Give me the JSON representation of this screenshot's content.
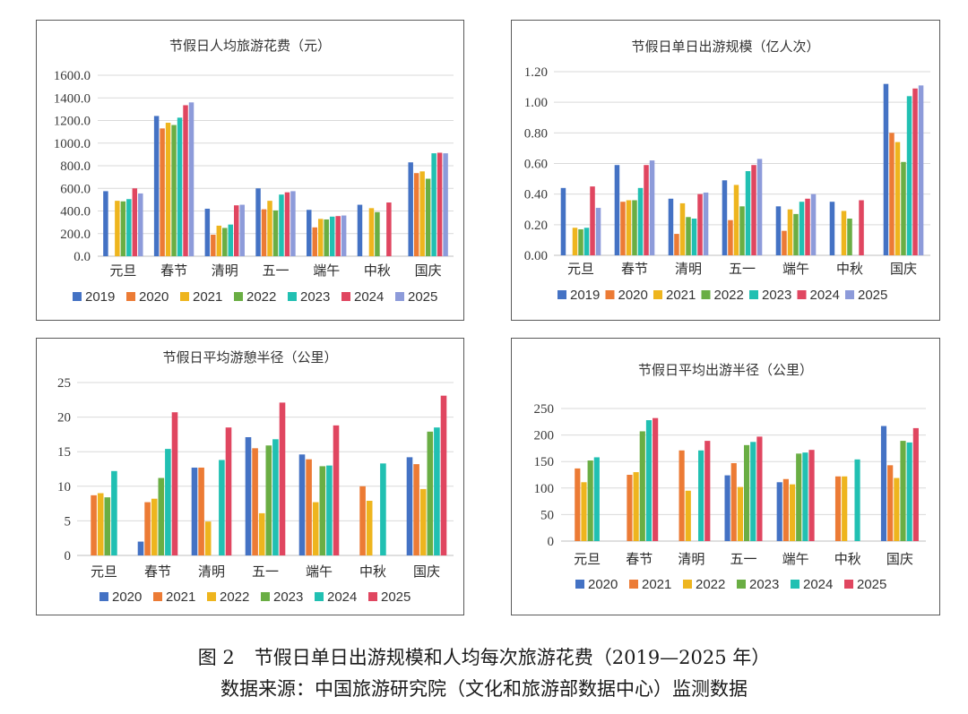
{
  "figure": {
    "label": "图 2",
    "caption": "节假日单日出游规模和人均每次旅游花费（2019—2025 年）",
    "source": "数据来源：中国旅游研究院（文化和旅游部数据中心）监测数据"
  },
  "chart_data": [
    {
      "type": "bar",
      "title": "节假日人均旅游花费（元）",
      "categories": [
        "元旦",
        "春节",
        "清明",
        "五一",
        "端午",
        "中秋",
        "国庆"
      ],
      "yticks": [
        "0.0",
        "200.0",
        "400.0",
        "600.0",
        "800.0",
        "1000.0",
        "1200.0",
        "1400.0",
        "1600.0"
      ],
      "ylim": [
        0,
        1600
      ],
      "grid": true,
      "legend": "bottom",
      "series": [
        {
          "name": "2019",
          "color": "#4472C4",
          "values": [
            575,
            1240,
            420,
            600,
            410,
            455,
            830
          ]
        },
        {
          "name": "2020",
          "color": "#EC7B35",
          "values": [
            null,
            1130,
            190,
            415,
            255,
            null,
            735
          ]
        },
        {
          "name": "2021",
          "color": "#EEB51E",
          "values": [
            490,
            1180,
            270,
            490,
            330,
            425,
            750
          ]
        },
        {
          "name": "2022",
          "color": "#6AAE44",
          "values": [
            485,
            1160,
            250,
            405,
            325,
            390,
            685
          ]
        },
        {
          "name": "2023",
          "color": "#21C0B2",
          "values": [
            505,
            1225,
            280,
            545,
            350,
            null,
            910
          ]
        },
        {
          "name": "2024",
          "color": "#E04660",
          "values": [
            600,
            1335,
            450,
            565,
            355,
            475,
            915
          ]
        },
        {
          "name": "2025",
          "color": "#8D9BDA",
          "values": [
            555,
            1360,
            455,
            575,
            360,
            null,
            910
          ]
        }
      ]
    },
    {
      "type": "bar",
      "title": "节假日单日出游规模（亿人次）",
      "categories": [
        "元旦",
        "春节",
        "清明",
        "五一",
        "端午",
        "中秋",
        "国庆"
      ],
      "yticks": [
        "0.00",
        "0.20",
        "0.40",
        "0.60",
        "0.80",
        "1.00",
        "1.20"
      ],
      "ylim": [
        0,
        1.2
      ],
      "grid": true,
      "legend": "bottom",
      "series": [
        {
          "name": "2019",
          "color": "#4472C4",
          "values": [
            0.44,
            0.59,
            0.37,
            0.49,
            0.32,
            0.35,
            1.12
          ]
        },
        {
          "name": "2020",
          "color": "#EC7B35",
          "values": [
            null,
            0.35,
            0.14,
            0.23,
            0.16,
            null,
            0.8
          ]
        },
        {
          "name": "2021",
          "color": "#EEB51E",
          "values": [
            0.18,
            0.36,
            0.34,
            0.46,
            0.3,
            0.29,
            0.74
          ]
        },
        {
          "name": "2022",
          "color": "#6AAE44",
          "values": [
            0.17,
            0.36,
            0.25,
            0.32,
            0.27,
            0.24,
            0.61
          ]
        },
        {
          "name": "2023",
          "color": "#21C0B2",
          "values": [
            0.18,
            0.44,
            0.24,
            0.55,
            0.35,
            null,
            1.04
          ]
        },
        {
          "name": "2024",
          "color": "#E04660",
          "values": [
            0.45,
            0.59,
            0.4,
            0.59,
            0.37,
            0.36,
            1.09
          ]
        },
        {
          "name": "2025",
          "color": "#8D9BDA",
          "values": [
            0.31,
            0.62,
            0.41,
            0.63,
            0.4,
            null,
            1.11
          ]
        }
      ]
    },
    {
      "type": "bar",
      "title": "节假日平均游憩半径（公里）",
      "categories": [
        "元旦",
        "春节",
        "清明",
        "五一",
        "端午",
        "中秋",
        "国庆"
      ],
      "yticks": [
        "0",
        "5",
        "10",
        "15",
        "20",
        "25"
      ],
      "ylim": [
        0,
        25
      ],
      "grid": true,
      "legend": "bottom",
      "series": [
        {
          "name": "2020",
          "color": "#4472C4",
          "values": [
            null,
            2.0,
            12.7,
            17.1,
            14.6,
            null,
            14.2
          ]
        },
        {
          "name": "2021",
          "color": "#EC7B35",
          "values": [
            8.7,
            7.7,
            12.7,
            15.5,
            13.9,
            10.0,
            13.2
          ]
        },
        {
          "name": "2022",
          "color": "#EEB51E",
          "values": [
            9.0,
            8.2,
            4.9,
            6.1,
            7.7,
            7.9,
            9.6
          ]
        },
        {
          "name": "2023",
          "color": "#6AAE44",
          "values": [
            8.4,
            11.2,
            null,
            15.9,
            12.9,
            null,
            17.9
          ]
        },
        {
          "name": "2024",
          "color": "#21C0B2",
          "values": [
            12.2,
            15.4,
            13.8,
            16.8,
            13.0,
            13.3,
            18.5
          ]
        },
        {
          "name": "2025",
          "color": "#E04660",
          "values": [
            null,
            20.7,
            18.5,
            22.1,
            18.8,
            null,
            23.1
          ]
        }
      ]
    },
    {
      "type": "bar",
      "title": "节假日平均出游半径（公里）",
      "categories": [
        "元旦",
        "春节",
        "清明",
        "五一",
        "端午",
        "中秋",
        "国庆"
      ],
      "yticks": [
        "0",
        "50",
        "100",
        "150",
        "200",
        "250"
      ],
      "ylim": [
        0,
        250
      ],
      "grid": true,
      "legend": "bottom",
      "series": [
        {
          "name": "2020",
          "color": "#4472C4",
          "values": [
            null,
            null,
            null,
            124,
            111,
            null,
            217
          ]
        },
        {
          "name": "2021",
          "color": "#EC7B35",
          "values": [
            137,
            125,
            171,
            147,
            117,
            122,
            143
          ]
        },
        {
          "name": "2022",
          "color": "#EEB51E",
          "values": [
            111,
            130,
            95,
            102,
            107,
            122,
            119
          ]
        },
        {
          "name": "2023",
          "color": "#6AAE44",
          "values": [
            152,
            207,
            null,
            181,
            165,
            null,
            189
          ]
        },
        {
          "name": "2024",
          "color": "#21C0B2",
          "values": [
            158,
            228,
            171,
            187,
            167,
            154,
            186
          ]
        },
        {
          "name": "2025",
          "color": "#E04660",
          "values": [
            null,
            232,
            189,
            197,
            172,
            null,
            213
          ]
        }
      ]
    }
  ]
}
